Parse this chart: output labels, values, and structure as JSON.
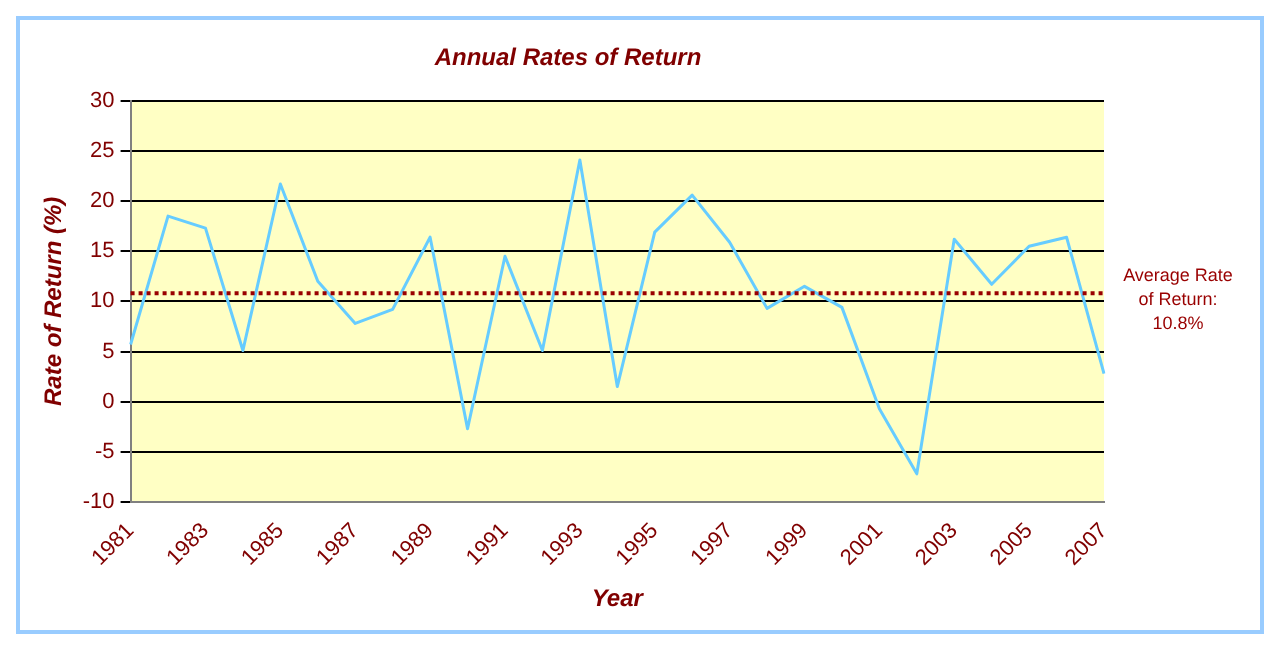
{
  "chart_data": {
    "type": "line",
    "title": "Annual Rates of Return",
    "xlabel": "Year",
    "ylabel": "Rate of Return (%)",
    "categories": [
      "1981",
      null,
      "1983",
      null,
      "1985",
      null,
      "1987",
      null,
      "1989",
      null,
      "1991",
      null,
      "1993",
      null,
      "1995",
      null,
      "1997",
      null,
      "1999",
      null,
      "2001",
      null,
      "2003",
      null,
      "2005",
      null,
      "2007"
    ],
    "series": [
      {
        "color": "#66ccff",
        "values": [
          5.7,
          18.5,
          17.3,
          5.1,
          21.7,
          12.0,
          7.8,
          9.2,
          16.4,
          -2.7,
          14.5,
          5.1,
          24.1,
          1.5,
          16.9,
          20.6,
          15.9,
          9.3,
          11.5,
          9.4,
          -0.7,
          -7.2,
          16.2,
          11.7,
          15.5,
          16.4,
          2.8
        ]
      }
    ],
    "ylim": [
      -10,
      30
    ],
    "yticks": [
      -10,
      -5,
      0,
      5,
      10,
      15,
      20,
      25,
      30
    ],
    "grid": "y",
    "legend": false,
    "marker": "none",
    "line_style": "solid",
    "ref_lines": [
      {
        "axis": "y",
        "value": 10.8,
        "label": "Average Rate of Return: 10.8%",
        "color": "#990000",
        "line_style": "dotted"
      }
    ]
  }
}
